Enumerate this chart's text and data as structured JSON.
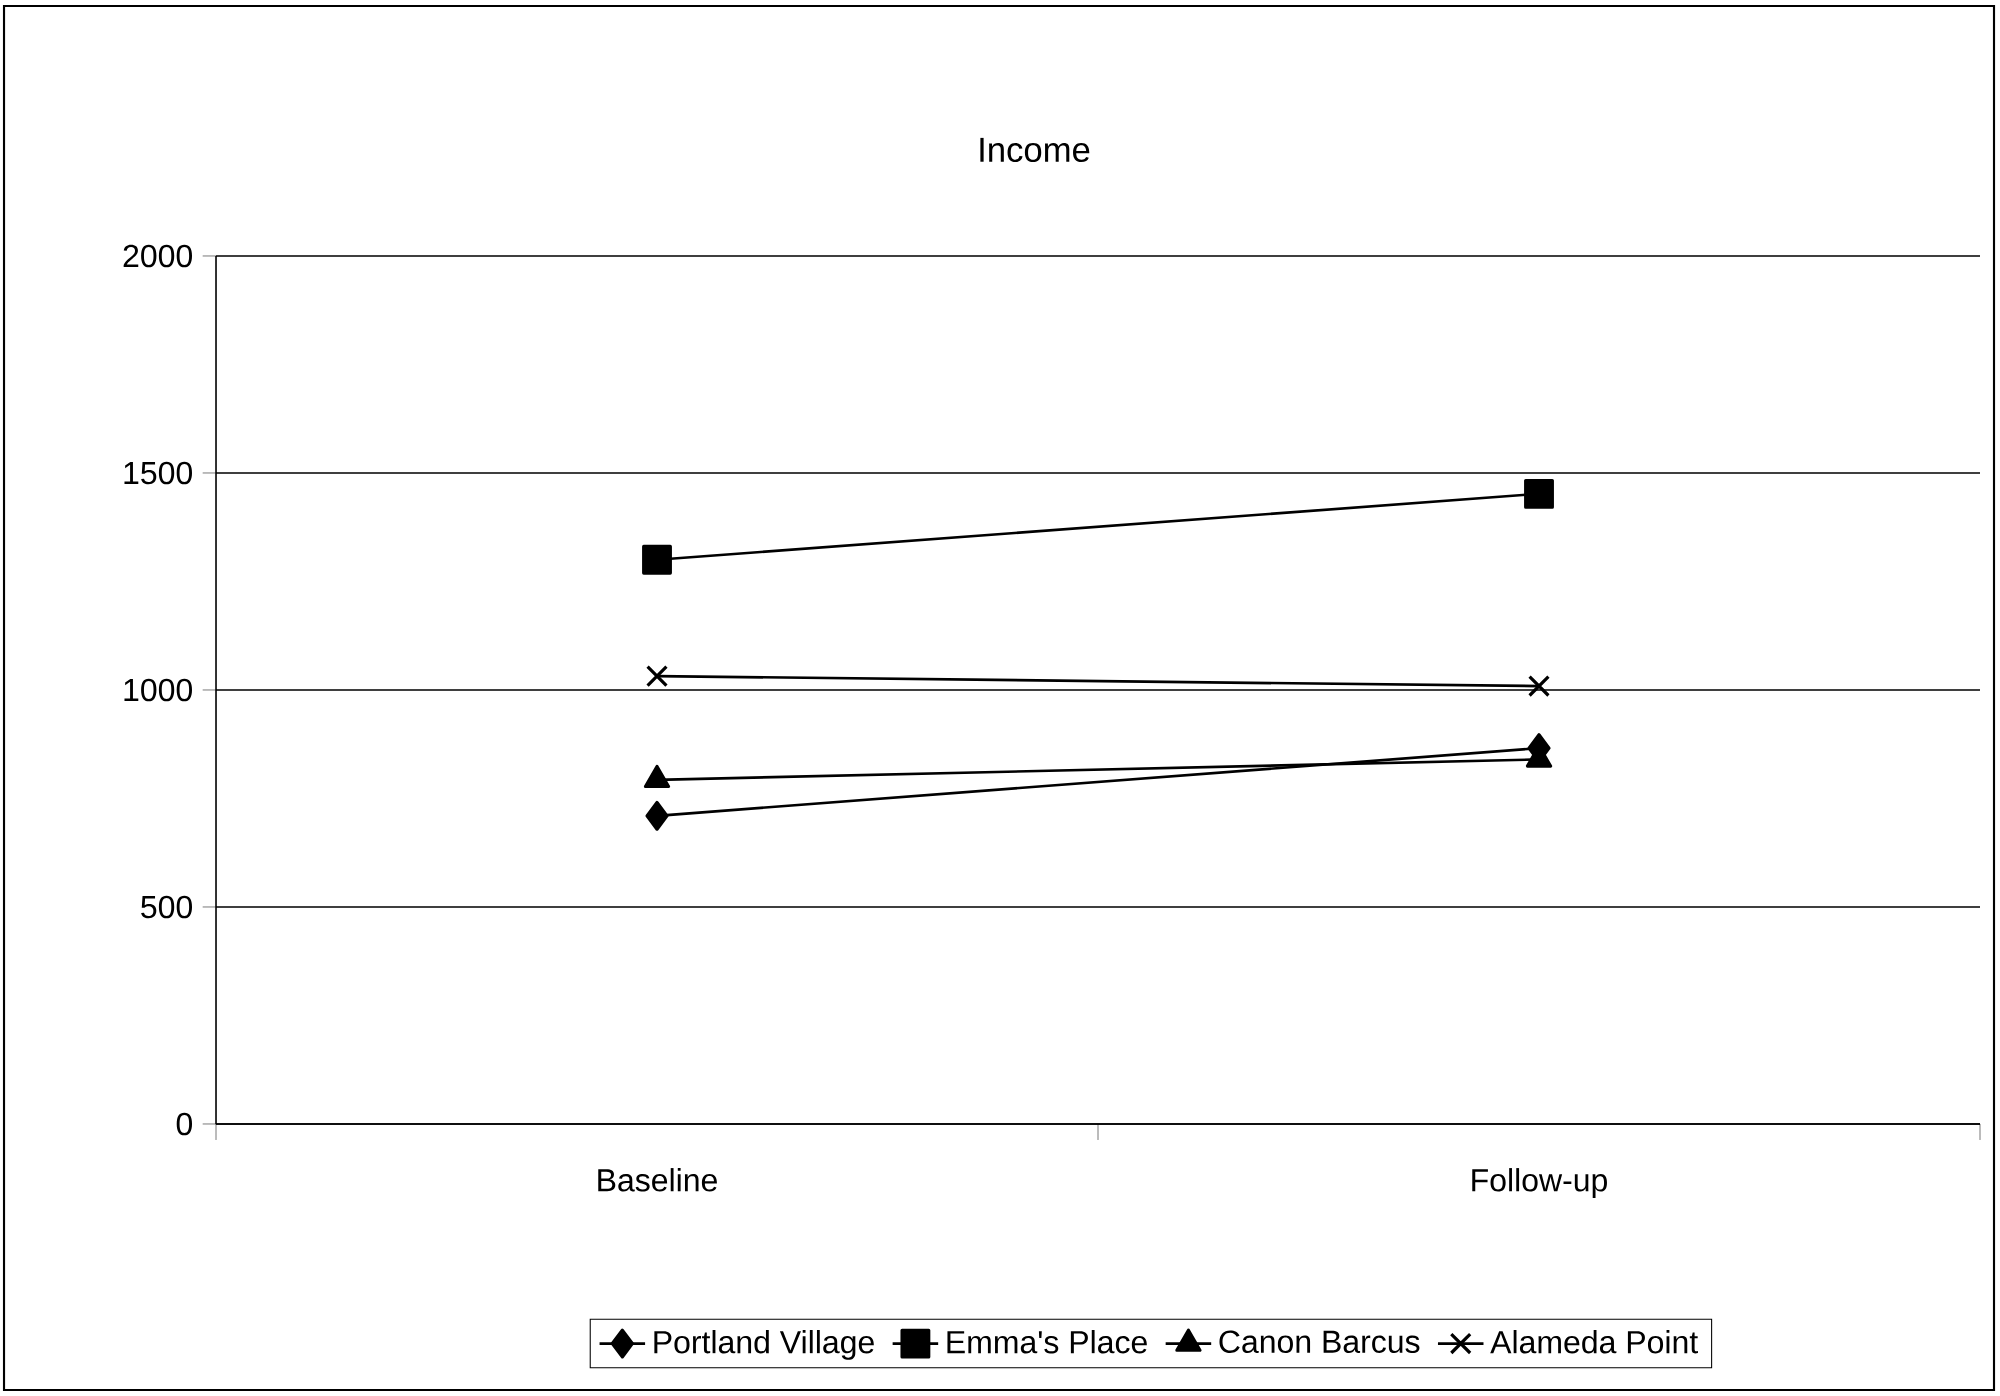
{
  "chart_data": {
    "type": "line",
    "title": "Income",
    "categories": [
      "Baseline",
      "Follow-up"
    ],
    "series": [
      {
        "name": "Portland Village",
        "color": "#000000",
        "marker": "diamond",
        "values": [
          710,
          866
        ]
      },
      {
        "name": "Emma's Place",
        "color": "#000000",
        "marker": "square",
        "values": [
          1300,
          1452
        ]
      },
      {
        "name": "Canon Barcus",
        "color": "#000000",
        "marker": "triangle",
        "values": [
          793,
          840
        ]
      },
      {
        "name": "Alameda Point",
        "color": "#000000",
        "marker": "cross",
        "values": [
          1032,
          1009
        ]
      }
    ],
    "ylim": [
      0,
      2000
    ],
    "yticks": [
      0,
      500,
      1000,
      1500,
      2000
    ],
    "grid": "y",
    "legend": "bottom",
    "line_style": "solid"
  }
}
